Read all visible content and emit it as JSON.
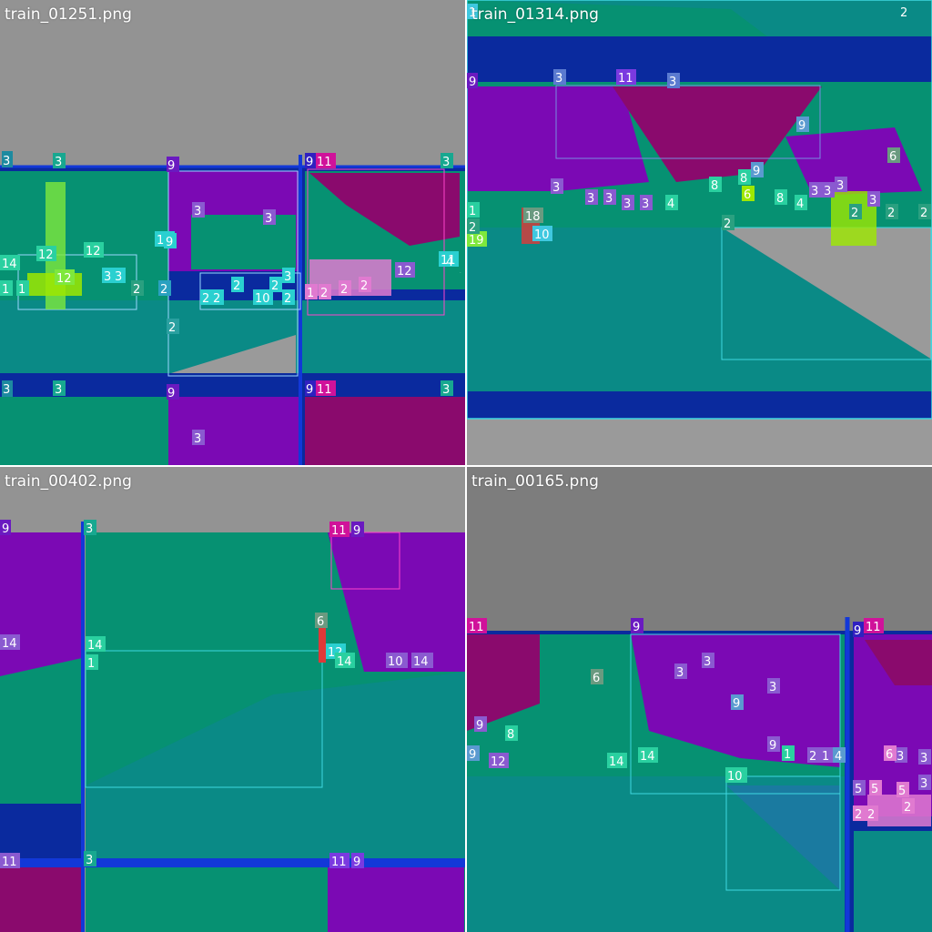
{
  "tiles": [
    {
      "filename": "train_01251.png",
      "labels": [
        "3",
        "3",
        "9",
        "9",
        "11",
        "3",
        "3",
        "3",
        "12",
        "14",
        "12",
        "13",
        "1",
        "1",
        "2",
        "2",
        "3",
        "3",
        "9",
        "12",
        "11",
        "2",
        "2",
        "2",
        "2",
        "10",
        "2",
        "3",
        "2",
        "1",
        "2",
        "2",
        "2",
        "12",
        "14",
        "4",
        "3",
        "3",
        "9",
        "9",
        "11",
        "3",
        "3"
      ]
    },
    {
      "filename": "train_01314.png",
      "labels": [
        "1",
        "2",
        "9",
        "3",
        "11",
        "3",
        "9",
        "9",
        "6",
        "3",
        "3",
        "3",
        "3",
        "3",
        "8",
        "8",
        "6",
        "18",
        "10",
        "19",
        "1",
        "2",
        "2",
        "4",
        "8",
        "4",
        "3",
        "3",
        "3",
        "3",
        "2",
        "2",
        "2"
      ]
    },
    {
      "filename": "train_00402.png",
      "labels": [
        "9",
        "3",
        "11",
        "9",
        "14",
        "6",
        "14",
        "1",
        "12",
        "14",
        "10",
        "14",
        "11",
        "3",
        "11",
        "9"
      ]
    },
    {
      "filename": "train_00165.png",
      "labels": [
        "11",
        "9",
        "9",
        "11",
        "3",
        "3",
        "6",
        "3",
        "3",
        "9",
        "9",
        "8",
        "9",
        "12",
        "14",
        "14",
        "9",
        "1",
        "2",
        "1",
        "4",
        "10",
        "6",
        "3",
        "3",
        "5",
        "5",
        "2",
        "2",
        "5",
        "2"
      ]
    }
  ],
  "colors": {
    "sky": "#939393",
    "green": "#069172",
    "teal": "#0a8a86",
    "purple": "#7b09b4",
    "magenta": "#8a0a6d",
    "navy": "#0a2a9e",
    "blue": "#1238d8",
    "dark_gray": "#7d7d7d",
    "light_gray": "#9a9a9a"
  }
}
